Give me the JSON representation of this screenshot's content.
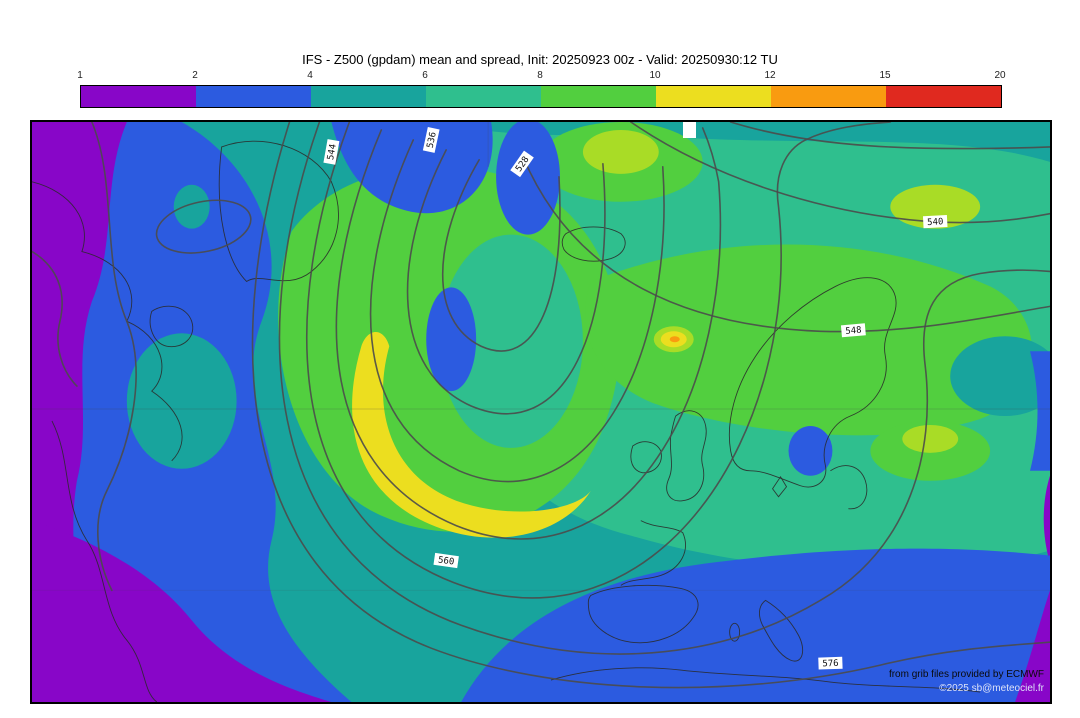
{
  "header": {
    "title": "IFS - Z500 (gpdam) mean and spread, Init: 20250923 00z - Valid: 20250930:12 TU"
  },
  "colorbar": {
    "ticks": [
      "1",
      "2",
      "4",
      "6",
      "8",
      "10",
      "12",
      "15",
      "20"
    ],
    "segments": [
      {
        "range": "1-2",
        "color": "#8806c8"
      },
      {
        "range": "2-4",
        "color": "#2c5be0"
      },
      {
        "range": "4-6",
        "color": "#18a49d"
      },
      {
        "range": "6-8",
        "color": "#2fbf8e"
      },
      {
        "range": "8-10",
        "color": "#52cf3f"
      },
      {
        "range": "10-12",
        "color": "#ecde1f"
      },
      {
        "range": "12-15",
        "color": "#f99b10"
      },
      {
        "range": "15-20",
        "color": "#e0291f"
      }
    ]
  },
  "palette": {
    "yellow_green_blend": "#a9dc26",
    "contour_line": "#4b4b4b",
    "coastline": "#2a2a2a",
    "map_border": "#000000"
  },
  "map": {
    "contour_labels": [
      {
        "value": "544"
      },
      {
        "value": "536"
      },
      {
        "value": "528"
      },
      {
        "value": "540"
      },
      {
        "value": "548"
      },
      {
        "value": "560"
      },
      {
        "value": "576"
      }
    ],
    "credits": {
      "line1": "from grib files provided by ECMWF",
      "line2": "©2025 sb@meteociel.fr"
    }
  }
}
